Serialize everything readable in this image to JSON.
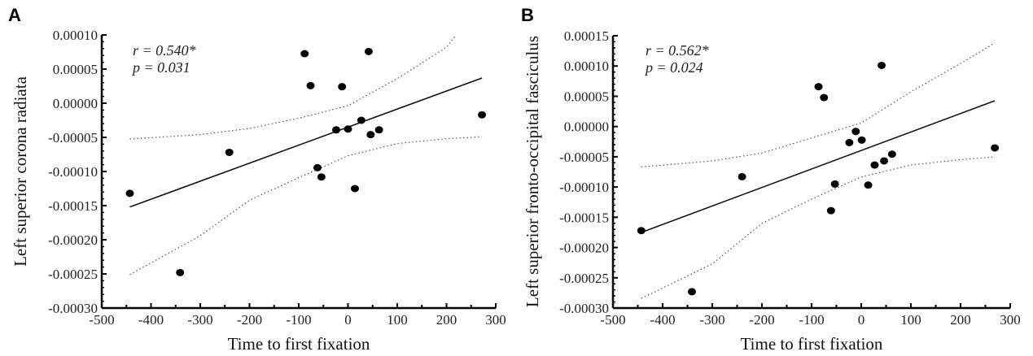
{
  "chart_data": [
    {
      "type": "scatter",
      "panel_label": "A",
      "xlabel": "Time to first fixation",
      "ylabel": "Left superior corona radiata",
      "xlim": [
        -500,
        300
      ],
      "ylim": [
        -0.0003,
        0.0001
      ],
      "x_ticks": [
        "-500",
        "-400",
        "-300",
        "-200",
        "-100",
        "0",
        "100",
        "200",
        "300"
      ],
      "y_ticks": [
        "0.00010",
        "0.00005",
        "0.00000",
        "-0.00005",
        "-0.00010",
        "-0.00015",
        "-0.00020",
        "-0.00025",
        "-0.00030"
      ],
      "annotation": {
        "r": "r = 0.540*",
        "p": "p = 0.031"
      },
      "grid": false,
      "points": [
        [
          -443,
          -0.000132
        ],
        [
          -341,
          -0.000248
        ],
        [
          -241,
          -7.2e-05
        ],
        [
          -88,
          7.26e-05
        ],
        [
          42,
          7.58e-05
        ],
        [
          -76,
          2.58e-05
        ],
        [
          -12,
          2.42e-05
        ],
        [
          27,
          -2.5e-05
        ],
        [
          -24,
          -3.9e-05
        ],
        [
          0,
          -3.78e-05
        ],
        [
          46,
          -4.6e-05
        ],
        [
          63,
          -3.9e-05
        ],
        [
          272,
          -1.7e-05
        ],
        [
          -62,
          -9.44e-05
        ],
        [
          -54,
          -0.000108
        ],
        [
          14,
          -0.000125
        ]
      ],
      "regression": [
        [
          -443,
          -0.000152
        ],
        [
          272,
          3.69e-05
        ]
      ],
      "ci_upper": [
        [
          -443,
          -5.24e-05
        ],
        [
          -300,
          -4.6e-05
        ],
        [
          -200,
          -3.7e-05
        ],
        [
          -100,
          -2.2e-05
        ],
        [
          0,
          -3.6e-06
        ],
        [
          100,
          3.6e-05
        ],
        [
          200,
          8.2e-05
        ],
        [
          217,
          9.76e-05
        ]
      ],
      "ci_lower": [
        [
          -443,
          -0.000251
        ],
        [
          -300,
          -0.000194
        ],
        [
          -200,
          -0.000142
        ],
        [
          -100,
          -0.000109
        ],
        [
          0,
          -7.7e-05
        ],
        [
          100,
          -5.9e-05
        ],
        [
          200,
          -5.2e-05
        ],
        [
          272,
          -4.9e-05
        ]
      ]
    },
    {
      "type": "scatter",
      "panel_label": "B",
      "xlabel": "Time to first fixation",
      "ylabel": "Left superior fronto-occipital fasciculus",
      "xlim": [
        -500,
        300
      ],
      "ylim": [
        -0.0003,
        0.00015
      ],
      "x_ticks": [
        "-500",
        "-400",
        "-300",
        "-200",
        "-100",
        "0",
        "100",
        "200",
        "300"
      ],
      "y_ticks": [
        "0.00015",
        "0.00010",
        "0.00005",
        "0.00000",
        "-0.00005",
        "-0.00010",
        "-0.00015",
        "-0.00020",
        "-0.00025",
        "-0.00030"
      ],
      "annotation": {
        "r": "r = 0.562*",
        "p": "p = 0.024"
      },
      "grid": false,
      "points": [
        [
          -443,
          -0.000172
        ],
        [
          -341,
          -0.000273
        ],
        [
          -240,
          -8.29e-05
        ],
        [
          41,
          0.000101
        ],
        [
          -86,
          6.58e-05
        ],
        [
          -75,
          4.79e-05
        ],
        [
          -11,
          -8.1e-06
        ],
        [
          -24,
          -2.65e-05
        ],
        [
          1,
          -2.24e-05
        ],
        [
          27,
          -6.36e-05
        ],
        [
          46,
          -5.68e-05
        ],
        [
          62,
          -4.57e-05
        ],
        [
          269,
          -3.53e-05
        ],
        [
          -53,
          -9.5e-05
        ],
        [
          14,
          -9.67e-05
        ],
        [
          -61,
          -0.000139
        ]
      ],
      "regression": [
        [
          -443,
          -0.000175
        ],
        [
          269,
          4.26e-05
        ]
      ],
      "ci_upper": [
        [
          -443,
          -6.68e-05
        ],
        [
          -300,
          -5.68e-05
        ],
        [
          -200,
          -4.39e-05
        ],
        [
          -100,
          -1.88e-05
        ],
        [
          0,
          5.8e-06
        ],
        [
          100,
          5.73e-05
        ],
        [
          200,
          0.0001043
        ],
        [
          269,
          0.000138
        ]
      ],
      "ci_lower": [
        [
          -443,
          -0.000284
        ],
        [
          -300,
          -0.000227
        ],
        [
          -200,
          -0.00016
        ],
        [
          -100,
          -0.00012
        ],
        [
          0,
          -8.35e-05
        ],
        [
          100,
          -6.36e-05
        ],
        [
          200,
          -5.47e-05
        ],
        [
          269,
          -5.01e-05
        ]
      ]
    }
  ]
}
